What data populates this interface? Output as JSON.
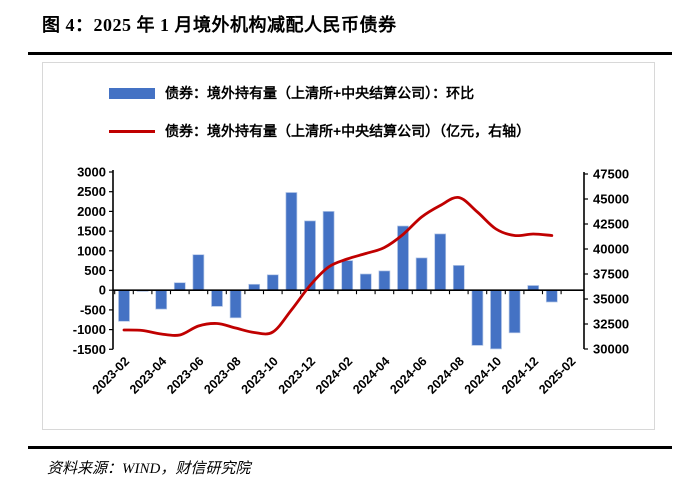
{
  "title": "图 4：2025 年 1 月境外机构减配人民币债券",
  "source": "资料来源：WIND，财信研究院",
  "colors": {
    "bar": "#4472C4",
    "bar_edge": "#B4C7E7",
    "line": "#C00000",
    "axis": "#000000",
    "panel_border": "#D8D8D8",
    "rule": "#000000"
  },
  "chart_data": {
    "type": "bar",
    "title": "",
    "categories": [
      "2023-02",
      "2023-03",
      "2023-04",
      "2023-05",
      "2023-06",
      "2023-07",
      "2023-08",
      "2023-09",
      "2023-10",
      "2023-11",
      "2023-12",
      "2024-01",
      "2024-02",
      "2024-03",
      "2024-04",
      "2024-05",
      "2024-06",
      "2024-07",
      "2024-08",
      "2024-09",
      "2024-10",
      "2024-11",
      "2024-12",
      "2025-01"
    ],
    "x_tick_labels": [
      "2023-02",
      "2023-04",
      "2023-06",
      "2023-08",
      "2023-10",
      "2023-12",
      "2024-02",
      "2024-04",
      "2024-06",
      "2024-08",
      "2024-10",
      "2024-12",
      "2025-02"
    ],
    "series": [
      {
        "name": "债券：境外持有量（上清所+中央结算公司）：环比",
        "type": "bar",
        "axis": "left",
        "color": "#4472C4",
        "values": [
          -790,
          -30,
          -480,
          190,
          900,
          -410,
          -700,
          150,
          390,
          2480,
          1760,
          2000,
          750,
          410,
          490,
          1630,
          820,
          1430,
          630,
          -1400,
          -1490,
          -1080,
          120,
          -300
        ]
      },
      {
        "name": "债券：境外持有量（上清所+中央结算公司）（亿元，右轴）",
        "type": "line",
        "axis": "right",
        "color": "#C00000",
        "values": [
          31900,
          31850,
          31500,
          31400,
          32300,
          32550,
          32100,
          31650,
          31700,
          33900,
          36350,
          38200,
          39000,
          39550,
          40150,
          41450,
          43200,
          44350,
          45150,
          43700,
          42000,
          41350,
          41500,
          41350
        ]
      }
    ],
    "left_axis": {
      "min": -1500,
      "max": 3000,
      "step": 500,
      "ticks": [
        3000,
        2500,
        2000,
        1500,
        1000,
        500,
        0,
        -500,
        -1000,
        -1500
      ]
    },
    "right_axis": {
      "min": 30000,
      "max": 47500,
      "step": 2500,
      "ticks": [
        47500,
        45000,
        42500,
        40000,
        37500,
        35000,
        32500,
        30000
      ]
    },
    "grid": false,
    "legend_position": "top-left"
  }
}
